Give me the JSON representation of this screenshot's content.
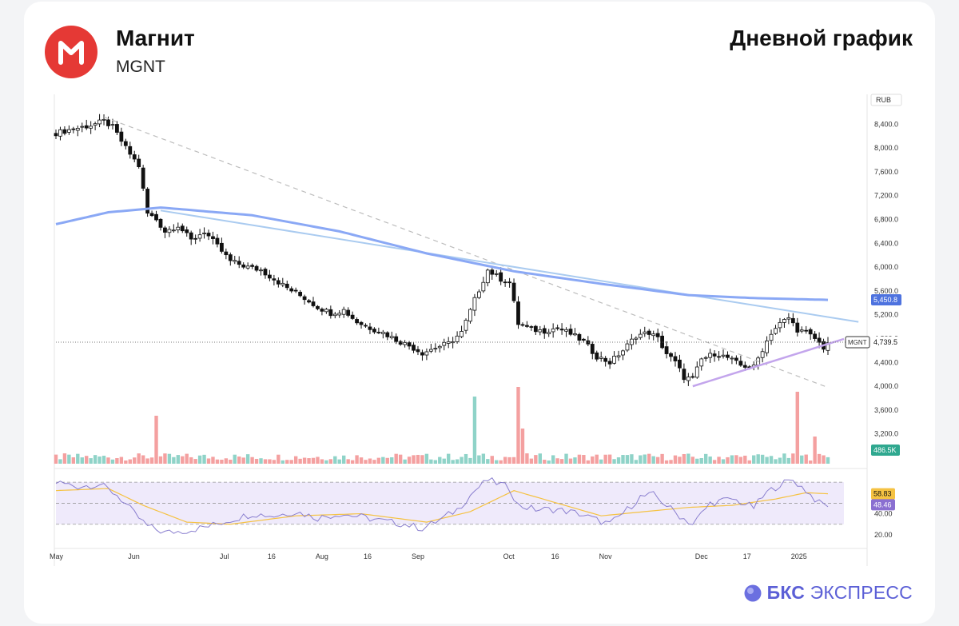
{
  "header": {
    "company": "Магнит",
    "ticker": "MGNT",
    "chart_title": "Дневной график"
  },
  "footer": {
    "brand_bold": "БКС",
    "brand_rest": "ЭКСПРЕСС"
  },
  "colors": {
    "bull": "#ffffff",
    "bear": "#111111",
    "volume_up": "#8fd3c8",
    "volume_down": "#f4a0a0",
    "ma_line": "#8aa8f5",
    "trend_line": "#aacbf0",
    "support_line": "#c3a5ec",
    "downtrend_dashed": "#bdbdbd",
    "rsi_line": "#8a7fcf",
    "rsi_signal": "#f5c242",
    "rsi_band": "#efeafb",
    "brand": "#5b5fd6",
    "logo_red": "#e53935"
  },
  "chart_data": {
    "type": "candlestick",
    "currency_label": "RUB",
    "y_ticks": [
      "8,400.0",
      "8,000.0",
      "7,600.0",
      "7,200.0",
      "6,800.0",
      "6,400.0",
      "6,000.0",
      "5,600.0",
      "5,200.0",
      "4,800.0",
      "4,400.0",
      "4,000.0",
      "3,600.0",
      "3,200.0"
    ],
    "ylim": [
      2700,
      8900
    ],
    "x_ticks": [
      "May",
      "Jun",
      "Jul",
      "16",
      "Aug",
      "16",
      "Sep",
      "Oct",
      "16",
      "Nov",
      "Dec",
      "17",
      "2025"
    ],
    "x_tick_index": [
      0,
      18,
      39,
      50,
      61,
      72,
      83,
      104,
      115,
      126,
      148,
      159,
      170
    ],
    "candles_count": 178,
    "close_anchors": [
      [
        0,
        8250
      ],
      [
        4,
        8320
      ],
      [
        8,
        8380
      ],
      [
        11,
        8450
      ],
      [
        13,
        8350
      ],
      [
        16,
        8000
      ],
      [
        19,
        7700
      ],
      [
        21,
        6900
      ],
      [
        23,
        6800
      ],
      [
        25,
        6600
      ],
      [
        28,
        6700
      ],
      [
        31,
        6450
      ],
      [
        34,
        6600
      ],
      [
        37,
        6350
      ],
      [
        40,
        6100
      ],
      [
        42,
        6050
      ],
      [
        44,
        6000
      ],
      [
        47,
        5950
      ],
      [
        50,
        5800
      ],
      [
        53,
        5650
      ],
      [
        57,
        5480
      ],
      [
        60,
        5330
      ],
      [
        63,
        5230
      ],
      [
        66,
        5280
      ],
      [
        69,
        5080
      ],
      [
        72,
        4980
      ],
      [
        75,
        4900
      ],
      [
        78,
        4780
      ],
      [
        81,
        4680
      ],
      [
        84,
        4560
      ],
      [
        87,
        4650
      ],
      [
        90,
        4720
      ],
      [
        93,
        4900
      ],
      [
        96,
        5450
      ],
      [
        99,
        5950
      ],
      [
        102,
        5800
      ],
      [
        104,
        5750
      ],
      [
        106,
        5050
      ],
      [
        109,
        4950
      ],
      [
        112,
        4930
      ],
      [
        115,
        4980
      ],
      [
        118,
        4880
      ],
      [
        121,
        4750
      ],
      [
        124,
        4500
      ],
      [
        127,
        4400
      ],
      [
        130,
        4600
      ],
      [
        133,
        4850
      ],
      [
        136,
        4900
      ],
      [
        138,
        4800
      ],
      [
        140,
        4550
      ],
      [
        142,
        4400
      ],
      [
        144,
        4150
      ],
      [
        146,
        4120
      ],
      [
        148,
        4450
      ],
      [
        151,
        4550
      ],
      [
        154,
        4480
      ],
      [
        157,
        4350
      ],
      [
        160,
        4320
      ],
      [
        162,
        4620
      ],
      [
        164,
        4900
      ],
      [
        166,
        5050
      ],
      [
        168,
        5150
      ],
      [
        170,
        4950
      ],
      [
        172,
        4900
      ],
      [
        174,
        4800
      ],
      [
        176,
        4650
      ],
      [
        177,
        4740
      ]
    ],
    "last_price": "4,739.5",
    "last_price_label": "MGNT",
    "ma_value": "5,450.8",
    "ma_anchors": [
      [
        0,
        6720
      ],
      [
        12,
        6920
      ],
      [
        24,
        7000
      ],
      [
        45,
        6870
      ],
      [
        65,
        6600
      ],
      [
        85,
        6230
      ],
      [
        105,
        5930
      ],
      [
        125,
        5720
      ],
      [
        145,
        5530
      ],
      [
        160,
        5480
      ],
      [
        177,
        5450
      ]
    ],
    "trendline": {
      "from": [
        24,
        6950
      ],
      "to": [
        184,
        5080
      ]
    },
    "downtrend_dashed": {
      "from": [
        11,
        8520
      ],
      "to": [
        177,
        3980
      ]
    },
    "support_line": {
      "from": [
        146,
        4000
      ],
      "to": [
        177,
        4660
      ]
    },
    "volume_value": "486.5K",
    "volume_spikes": [
      [
        23,
        3.0
      ],
      [
        96,
        4.2
      ],
      [
        106,
        4.8
      ],
      [
        107,
        2.2
      ],
      [
        170,
        4.5
      ],
      [
        174,
        1.7
      ]
    ],
    "rsi": {
      "ticks": [
        "40.00",
        "20.00"
      ],
      "ylim": [
        10,
        80
      ],
      "overbought": 70,
      "oversold": 30,
      "last": "48.46",
      "signal_last": "58.83",
      "anchors": [
        [
          0,
          70
        ],
        [
          5,
          66
        ],
        [
          10,
          68
        ],
        [
          14,
          58
        ],
        [
          18,
          40
        ],
        [
          21,
          28
        ],
        [
          25,
          22
        ],
        [
          30,
          24
        ],
        [
          35,
          28
        ],
        [
          40,
          34
        ],
        [
          45,
          40
        ],
        [
          50,
          38
        ],
        [
          55,
          42
        ],
        [
          60,
          36
        ],
        [
          65,
          40
        ],
        [
          70,
          37
        ],
        [
          75,
          33
        ],
        [
          80,
          30
        ],
        [
          84,
          26
        ],
        [
          88,
          34
        ],
        [
          92,
          44
        ],
        [
          96,
          62
        ],
        [
          99,
          72
        ],
        [
          102,
          68
        ],
        [
          104,
          64
        ],
        [
          106,
          48
        ],
        [
          110,
          44
        ],
        [
          115,
          44
        ],
        [
          120,
          40
        ],
        [
          124,
          34
        ],
        [
          127,
          30
        ],
        [
          131,
          44
        ],
        [
          134,
          56
        ],
        [
          137,
          58
        ],
        [
          140,
          48
        ],
        [
          143,
          38
        ],
        [
          146,
          30
        ],
        [
          150,
          50
        ],
        [
          155,
          54
        ],
        [
          160,
          46
        ],
        [
          163,
          60
        ],
        [
          166,
          68
        ],
        [
          169,
          72
        ],
        [
          172,
          62
        ],
        [
          175,
          50
        ],
        [
          177,
          48
        ]
      ],
      "signal_anchors": [
        [
          0,
          62
        ],
        [
          12,
          64
        ],
        [
          20,
          48
        ],
        [
          30,
          32
        ],
        [
          40,
          30
        ],
        [
          55,
          38
        ],
        [
          70,
          40
        ],
        [
          85,
          32
        ],
        [
          95,
          42
        ],
        [
          105,
          62
        ],
        [
          115,
          50
        ],
        [
          125,
          38
        ],
        [
          135,
          42
        ],
        [
          145,
          46
        ],
        [
          155,
          48
        ],
        [
          165,
          54
        ],
        [
          172,
          60
        ],
        [
          177,
          59
        ]
      ]
    }
  }
}
